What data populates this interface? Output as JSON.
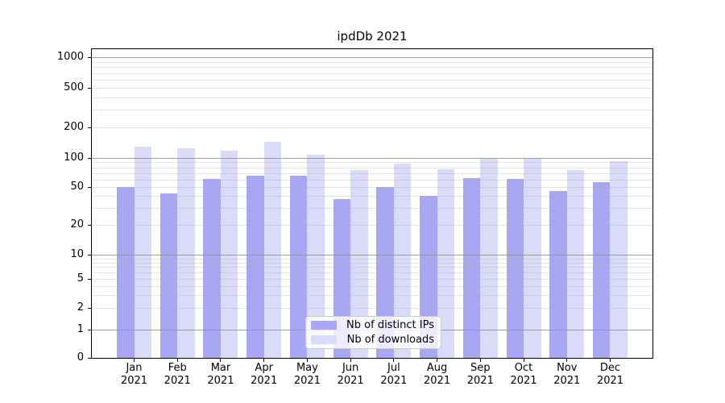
{
  "title": "ipdDb 2021",
  "chart_data": {
    "type": "bar",
    "title": "ipdDb 2021",
    "categories": [
      "Jan 2021",
      "Feb 2021",
      "Mar 2021",
      "Apr 2021",
      "May 2021",
      "Jun 2021",
      "Jul 2021",
      "Aug 2021",
      "Sep 2021",
      "Oct 2021",
      "Nov 2021",
      "Dec 2021"
    ],
    "series": [
      {
        "name": "Nb of distinct IPs",
        "color": "#a7a7f3",
        "values": [
          50,
          43,
          61,
          65,
          65,
          37,
          50,
          40,
          62,
          61,
          45,
          56
        ]
      },
      {
        "name": "Nb of downloads",
        "color": "#dadaf9",
        "values": [
          130,
          125,
          118,
          145,
          108,
          75,
          88,
          77,
          100,
          100,
          75,
          93
        ]
      }
    ],
    "xlabel": "",
    "ylabel": "",
    "yscale": "symlog",
    "ylim": [
      0,
      1200
    ],
    "grid": "both",
    "legend_position": "lower center",
    "y_ticks": [
      {
        "label": "0",
        "value": 0,
        "grid": "none"
      },
      {
        "label": "1",
        "value": 1,
        "grid": "major"
      },
      {
        "label": "2",
        "value": 2,
        "grid": "minor"
      },
      {
        "label": "5",
        "value": 5,
        "grid": "minor"
      },
      {
        "label": "10",
        "value": 10,
        "grid": "major"
      },
      {
        "label": "20",
        "value": 20,
        "grid": "minor"
      },
      {
        "label": "50",
        "value": 50,
        "grid": "minor"
      },
      {
        "label": "100",
        "value": 100,
        "grid": "major"
      },
      {
        "label": "200",
        "value": 200,
        "grid": "minor"
      },
      {
        "label": "500",
        "value": 500,
        "grid": "minor"
      },
      {
        "label": "1000",
        "value": 1000,
        "grid": "major"
      }
    ],
    "y_minor_grid": [
      3,
      4,
      6,
      7,
      8,
      9,
      30,
      40,
      60,
      70,
      80,
      90,
      300,
      400,
      600,
      700,
      800,
      900
    ]
  },
  "colors": {
    "background": "#ffffff",
    "spine": "#000000",
    "grid_major": "#969696",
    "grid_minor": "#e4e4e4",
    "bar_distinct_ips": "#a7a7f3",
    "bar_downloads": "#dadaf9"
  }
}
